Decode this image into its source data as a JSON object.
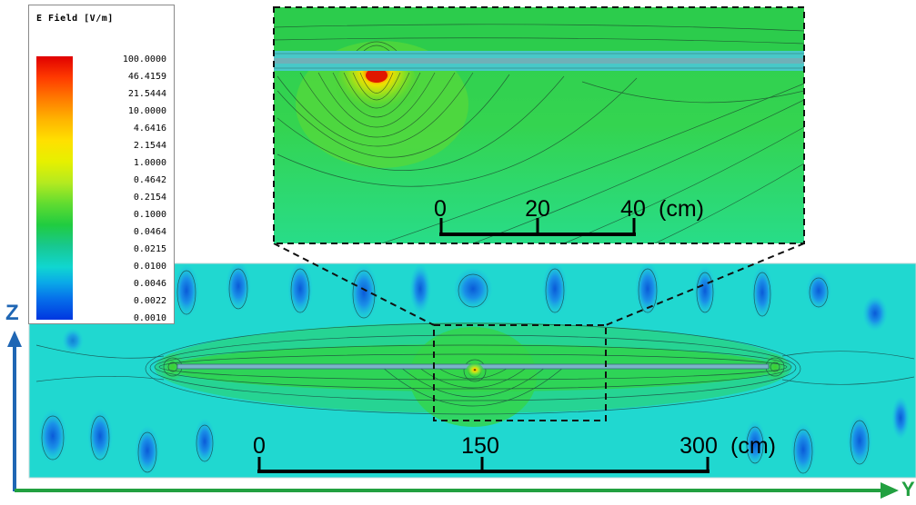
{
  "legend": {
    "title": "E Field [V/m]",
    "labels": [
      "100.0000",
      "46.4159",
      "21.5444",
      "10.0000",
      "4.6416",
      "2.1544",
      "1.0000",
      "0.4642",
      "0.2154",
      "0.1000",
      "0.0464",
      "0.0215",
      "0.0100",
      "0.0046",
      "0.0022",
      "0.0010"
    ]
  },
  "axes": {
    "z_label": "Z",
    "y_label": "Y",
    "z_color": "#1f66b4",
    "y_color": "#22a040"
  },
  "inset_scale": {
    "ticks": [
      "0",
      "20",
      "40"
    ],
    "unit": "(cm)"
  },
  "main_scale": {
    "ticks": [
      "0",
      "150",
      "300"
    ],
    "unit": "(cm)"
  },
  "colors": {
    "field_background": "#22e0c8",
    "field_light": "#46e8d2",
    "hotspot": "#e02000",
    "line_source": "#6ab0c8"
  }
}
